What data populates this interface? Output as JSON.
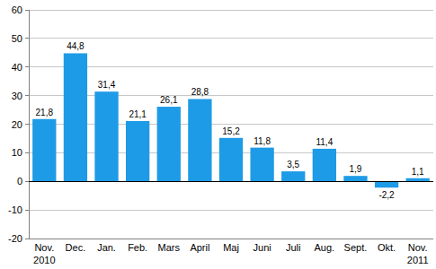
{
  "chart_data": {
    "type": "bar",
    "categories": [
      "Nov. 2010",
      "Dec.",
      "Jan.",
      "Feb.",
      "Mars",
      "April",
      "Maj",
      "Juni",
      "Juli",
      "Aug.",
      "Sept.",
      "Okt.",
      "Nov. 2011"
    ],
    "values": [
      21.8,
      44.8,
      31.4,
      21.1,
      26.1,
      28.8,
      15.2,
      11.8,
      3.5,
      11.4,
      1.9,
      -2.2,
      1.1
    ],
    "value_labels": [
      "21,8",
      "44,8",
      "31,4",
      "21,1",
      "26,1",
      "28,8",
      "15,2",
      "11,8",
      "3,5",
      "11,4",
      "1,9",
      "-2,2",
      "1,1"
    ],
    "color": "#1e9be6",
    "ylim": [
      -20,
      60
    ],
    "yticks": [
      -20,
      -10,
      0,
      10,
      20,
      30,
      40,
      50,
      60
    ],
    "grid": true,
    "data_labels": true
  }
}
